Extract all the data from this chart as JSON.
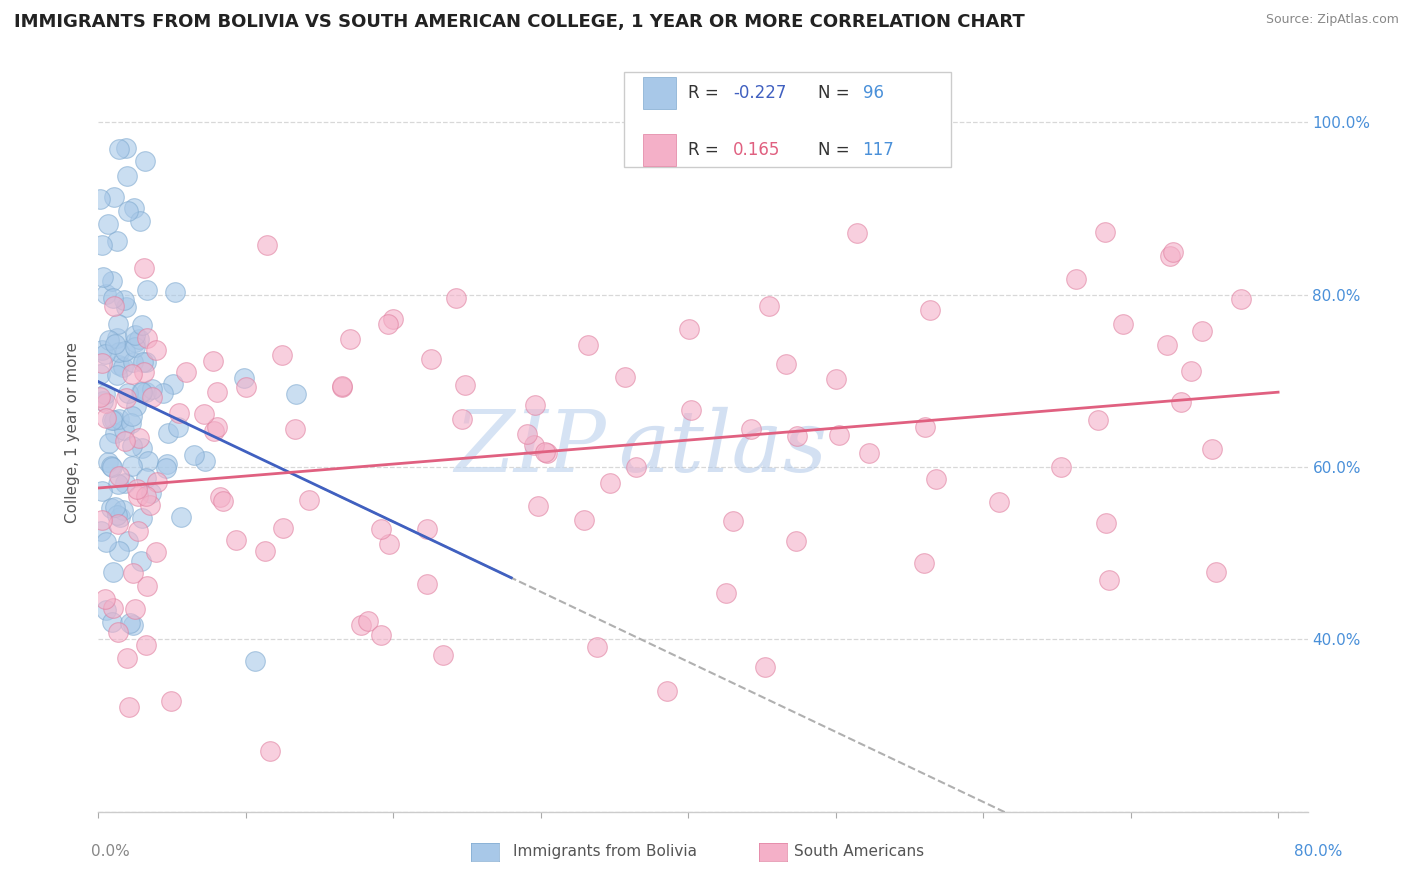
{
  "title": "IMMIGRANTS FROM BOLIVIA VS SOUTH AMERICAN COLLEGE, 1 YEAR OR MORE CORRELATION CHART",
  "source": "Source: ZipAtlas.com",
  "ylabel": "College, 1 year or more",
  "bolivia_color": "#a8c8e8",
  "south_american_color": "#f4b0c8",
  "bolivia_edge": "#80aad0",
  "south_american_edge": "#e080a0",
  "regression_blue_color": "#4060c0",
  "regression_pink_color": "#e06080",
  "regression_gray_color": "#b0b0b0",
  "watermark_color": "#c8d8f0",
  "watermark_text": "ZIPatlas",
  "background_color": "#ffffff",
  "grid_color": "#d8d8d8",
  "R_blue": -0.227,
  "N_blue": 96,
  "R_pink": 0.165,
  "N_pink": 117,
  "right_ytick_color": "#4a90d9",
  "left_tick_color": "#888888",
  "bottom_tick_color": "#888888"
}
